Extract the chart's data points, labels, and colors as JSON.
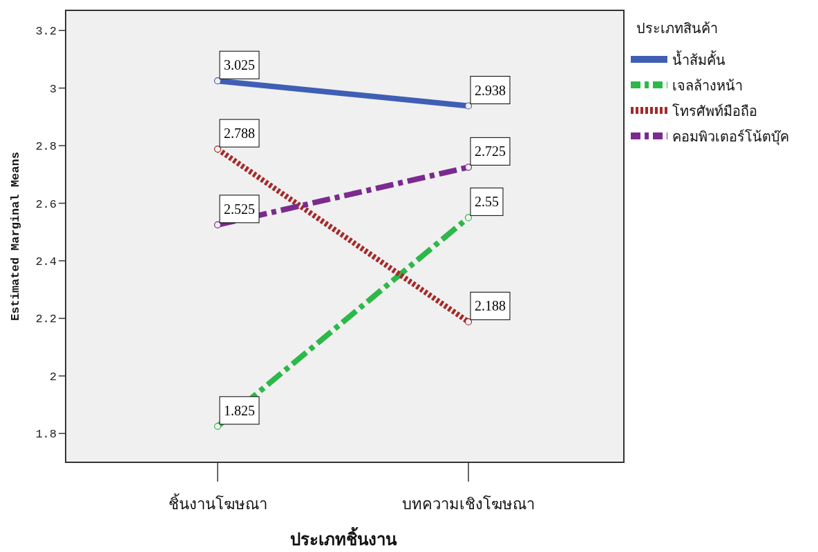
{
  "chart_data": {
    "type": "line",
    "xlabel": "ประเภทชิ้นงาน",
    "ylabel": "Estimated Marginal Means",
    "legend_title": "ประเภทสินค้า",
    "categories": [
      "ชิ้นงานโฆษณา",
      "บทความเชิงโฆษณา"
    ],
    "series": [
      {
        "name": "น้ำส้มคั้น",
        "color": "#3f5fb5",
        "line_style": "solid",
        "values": [
          3.025,
          2.938
        ]
      },
      {
        "name": "เจลล้างหน้า",
        "color": "#2db84a",
        "line_style": "dashed",
        "values": [
          1.825,
          2.55
        ]
      },
      {
        "name": "โทรศัพท์มือถือ",
        "color": "#a52a2a",
        "line_style": "dotted",
        "values": [
          2.788,
          2.188
        ]
      },
      {
        "name": "คอมพิวเตอร์โน้ตบุ๊ค",
        "color": "#7b2a8f",
        "line_style": "dashed",
        "values": [
          2.525,
          2.725
        ]
      }
    ],
    "ylim": [
      1.7,
      3.27
    ],
    "yticks": [
      {
        "value": 1.8,
        "label": "1.8"
      },
      {
        "value": 2,
        "label": "2"
      },
      {
        "value": 2.2,
        "label": "2.2"
      },
      {
        "value": 2.4,
        "label": "2.4"
      },
      {
        "value": 2.6,
        "label": "2.6"
      },
      {
        "value": 2.8,
        "label": "2.8"
      },
      {
        "value": 3,
        "label": "3"
      },
      {
        "value": 3.2,
        "label": "3.2"
      }
    ],
    "data_labels": true,
    "marker": "circle",
    "grid": false,
    "legend": "right"
  }
}
